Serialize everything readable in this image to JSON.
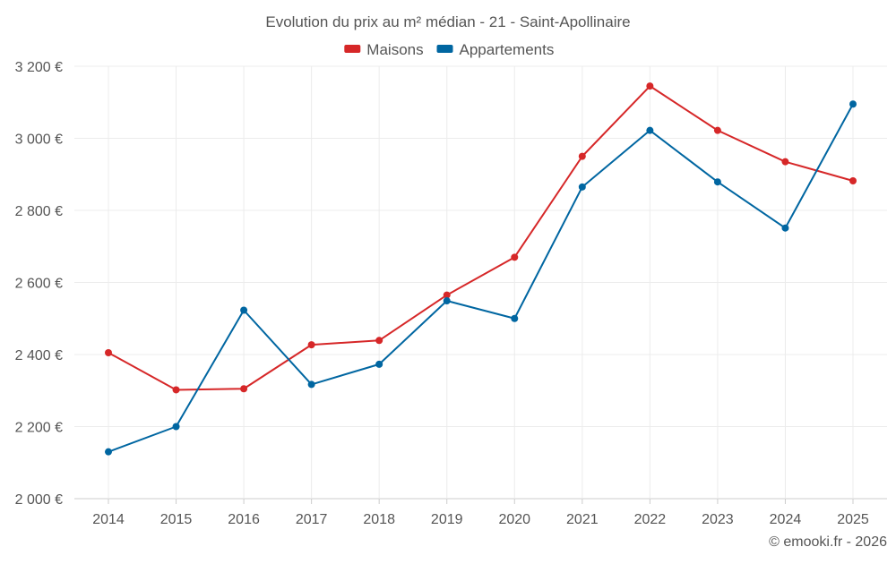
{
  "chart_data": {
    "type": "line",
    "title": "Evolution du prix au m² médian - 21 - Saint-Apollinaire",
    "categories": [
      "2014",
      "2015",
      "2016",
      "2017",
      "2018",
      "2019",
      "2020",
      "2021",
      "2022",
      "2023",
      "2024",
      "2025"
    ],
    "series": [
      {
        "name": "Maisons",
        "color": "#d62728",
        "values": [
          2405,
          2302,
          2305,
          2427,
          2439,
          2565,
          2670,
          2950,
          3145,
          3022,
          2935,
          2882
        ]
      },
      {
        "name": "Appartements",
        "color": "#0066a1",
        "values": [
          2130,
          2200,
          2523,
          2317,
          2373,
          2549,
          2500,
          2865,
          3022,
          2879,
          2751,
          3095
        ]
      }
    ],
    "ylim": [
      2000,
      3200
    ],
    "yticks": [
      2000,
      2200,
      2400,
      2600,
      2800,
      3000,
      3200
    ],
    "ytick_labels": [
      "2 000 €",
      "2 200 €",
      "2 400 €",
      "2 600 €",
      "2 800 €",
      "3 000 €",
      "3 200 €"
    ],
    "legend_position": "top-center",
    "grid": true,
    "xlabel": "",
    "ylabel": ""
  },
  "credit": "© emooki.fr - 2026"
}
